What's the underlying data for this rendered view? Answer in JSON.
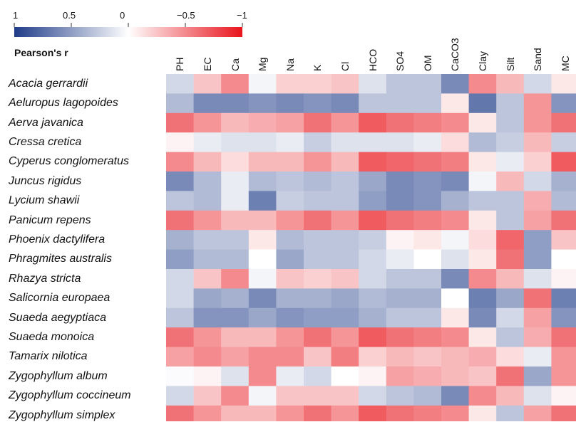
{
  "chart_data": {
    "type": "heatmap",
    "colorbar": {
      "title": "Pearson's r",
      "ticks": [
        "1",
        "0.5",
        "0",
        "−0.5",
        "−1"
      ],
      "tick_values": [
        1,
        0.5,
        0,
        -0.5,
        -1
      ],
      "colors": {
        "positive": "#1f3c88",
        "zero": "#ffffff",
        "negative": "#e8141b"
      }
    },
    "columns": [
      "PH",
      "EC",
      "Ca",
      "Mg",
      "Na",
      "K",
      "Cl",
      "HCO",
      "SO4",
      "OM",
      "CaCO3",
      "Clay",
      "Silt",
      "Sand",
      "MC"
    ],
    "rows": [
      "Acacia gerrardii",
      "Aeluropus lagopoides",
      "Aerva javanica",
      "Cressa cretica",
      "Cyperus conglomeratus",
      "Juncus rigidus",
      "Lycium shawii",
      "Panicum repens",
      "Phoenix dactylifera",
      "Phragmites australis",
      "Rhazya stricta",
      "Salicornia europaea",
      "Suaeda aegyptiaca",
      "Suaeda monoica",
      "Tamarix nilotica",
      "Zygophyllum album",
      "Zygophyllum coccineum",
      "Zygophyllum simplex"
    ],
    "values": [
      [
        0.2,
        -0.25,
        -0.5,
        0.05,
        -0.2,
        -0.2,
        -0.25,
        0.15,
        0.3,
        0.3,
        0.6,
        -0.5,
        -0.3,
        0.2,
        -0.1
      ],
      [
        0.35,
        0.6,
        0.6,
        0.55,
        0.6,
        0.55,
        0.6,
        0.3,
        0.3,
        0.3,
        -0.1,
        0.7,
        0.3,
        -0.45,
        0.55
      ],
      [
        -0.6,
        -0.45,
        -0.3,
        -0.35,
        -0.4,
        -0.6,
        -0.45,
        -0.7,
        -0.6,
        -0.55,
        -0.5,
        -0.1,
        0.3,
        -0.45,
        -0.6
      ],
      [
        -0.05,
        0.1,
        0.15,
        0.15,
        0.1,
        0.25,
        0.15,
        0.15,
        0.15,
        0.1,
        -0.15,
        0.35,
        0.25,
        -0.3,
        0.25
      ],
      [
        -0.5,
        -0.3,
        -0.15,
        -0.3,
        -0.3,
        -0.45,
        -0.3,
        -0.7,
        -0.65,
        -0.6,
        -0.55,
        -0.1,
        0.1,
        -0.2,
        -0.7
      ],
      [
        0.6,
        0.35,
        0.1,
        0.35,
        0.3,
        0.35,
        0.3,
        0.45,
        0.6,
        0.55,
        0.6,
        0.05,
        -0.3,
        0.2,
        0.4
      ],
      [
        0.3,
        0.35,
        0.1,
        0.65,
        0.25,
        0.3,
        0.3,
        0.5,
        0.6,
        0.55,
        0.4,
        0.3,
        0.3,
        -0.35,
        0.35
      ],
      [
        -0.6,
        -0.45,
        -0.3,
        -0.3,
        -0.45,
        -0.6,
        -0.45,
        -0.7,
        -0.6,
        -0.55,
        -0.5,
        -0.1,
        0.3,
        -0.4,
        -0.6
      ],
      [
        0.4,
        0.3,
        0.3,
        -0.1,
        0.35,
        0.3,
        0.3,
        0.25,
        -0.05,
        -0.1,
        0.05,
        -0.15,
        -0.65,
        0.5,
        -0.25
      ],
      [
        0.5,
        0.35,
        0.35,
        0.0,
        0.45,
        0.3,
        0.3,
        0.2,
        0.1,
        0.0,
        0.15,
        -0.1,
        -0.6,
        0.5,
        0.0
      ],
      [
        0.2,
        -0.25,
        -0.5,
        0.05,
        -0.25,
        -0.2,
        -0.25,
        0.2,
        0.3,
        0.3,
        0.6,
        -0.5,
        -0.3,
        0.15,
        -0.05
      ],
      [
        0.2,
        0.45,
        0.4,
        0.6,
        0.4,
        0.4,
        0.45,
        0.35,
        0.4,
        0.4,
        0.0,
        0.65,
        0.45,
        -0.6,
        0.65
      ],
      [
        0.3,
        0.55,
        0.55,
        0.45,
        0.55,
        0.5,
        0.5,
        0.4,
        0.3,
        0.3,
        -0.1,
        0.6,
        0.2,
        -0.4,
        0.55
      ],
      [
        -0.6,
        -0.45,
        -0.3,
        -0.3,
        -0.45,
        -0.6,
        -0.45,
        -0.7,
        -0.6,
        -0.55,
        -0.5,
        -0.1,
        0.3,
        -0.35,
        -0.6
      ],
      [
        -0.4,
        -0.5,
        -0.4,
        -0.5,
        -0.5,
        -0.25,
        -0.55,
        -0.2,
        -0.3,
        -0.25,
        -0.3,
        -0.35,
        -0.15,
        0.1,
        -0.45
      ],
      [
        0.02,
        -0.05,
        0.15,
        -0.5,
        0.1,
        0.2,
        0.0,
        -0.05,
        -0.4,
        -0.35,
        -0.3,
        -0.25,
        -0.6,
        0.45,
        -0.45
      ],
      [
        0.2,
        -0.25,
        -0.5,
        0.05,
        -0.25,
        -0.25,
        -0.25,
        0.2,
        0.3,
        0.35,
        0.6,
        -0.5,
        -0.3,
        0.15,
        -0.05
      ],
      [
        -0.6,
        -0.45,
        -0.3,
        -0.3,
        -0.45,
        -0.6,
        -0.45,
        -0.7,
        -0.6,
        -0.55,
        -0.5,
        -0.1,
        0.3,
        -0.4,
        -0.6
      ]
    ]
  }
}
